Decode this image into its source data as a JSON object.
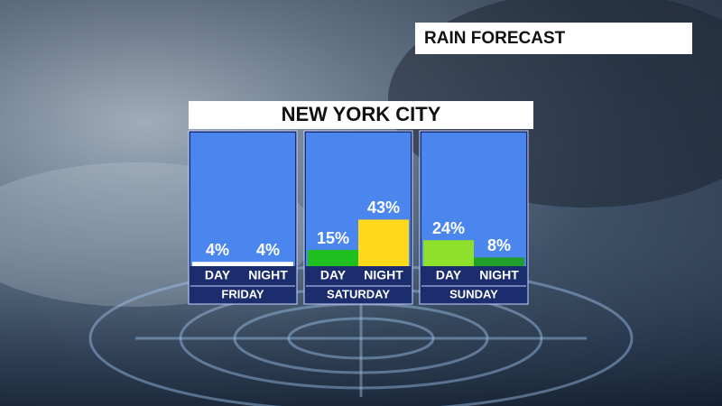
{
  "label": "RAIN FORECAST",
  "chart_data": {
    "type": "bar",
    "title": "NEW YORK CITY",
    "categories": [
      "FRIDAY",
      "SATURDAY",
      "SUNDAY"
    ],
    "series": [
      {
        "name": "DAY",
        "values": [
          4,
          15,
          24
        ],
        "value_labels": [
          "4%",
          "15%",
          "24%"
        ],
        "colors": [
          "#ffffff",
          "#1fbf1f",
          "#8fe02a"
        ]
      },
      {
        "name": "NIGHT",
        "values": [
          4,
          43,
          8
        ],
        "value_labels": [
          "4%",
          "43%",
          "8%"
        ],
        "colors": [
          "#ffffff",
          "#ffd91a",
          "#1f9f2a"
        ]
      }
    ],
    "ylim": [
      0,
      125
    ]
  }
}
